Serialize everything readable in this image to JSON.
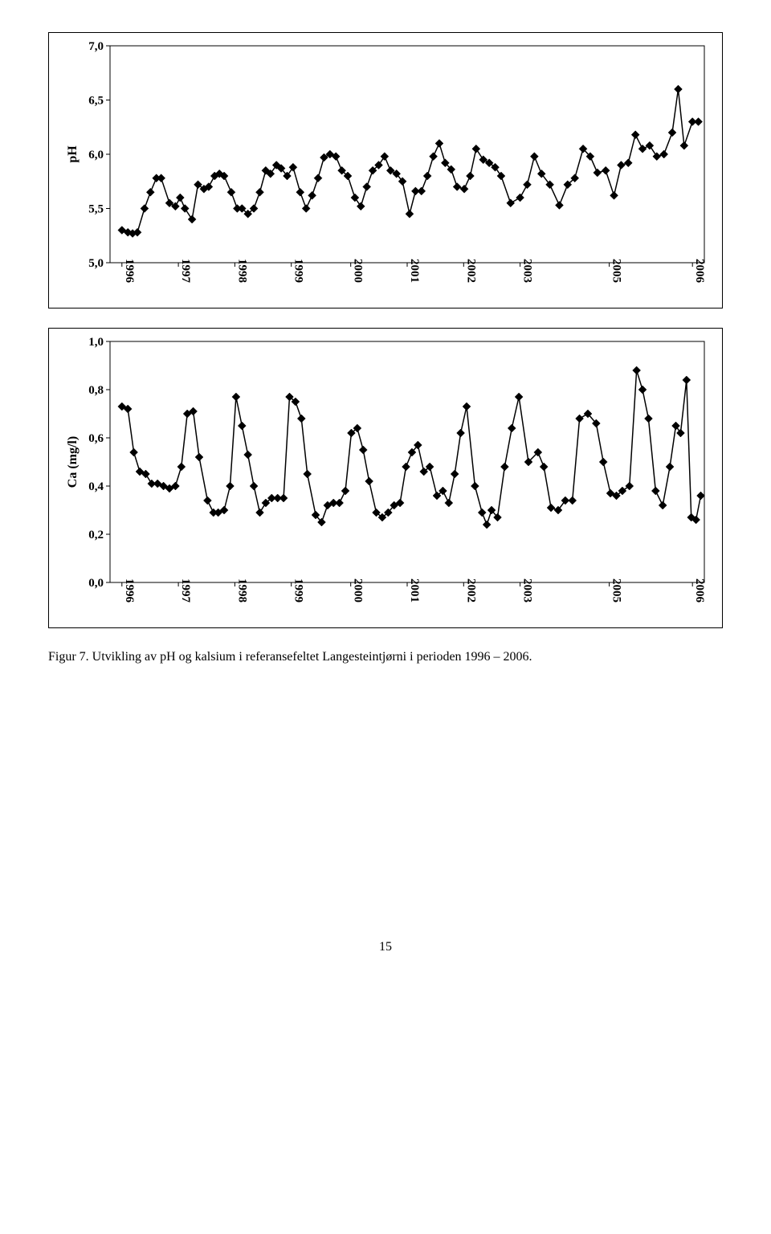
{
  "chart_ph": {
    "type": "line",
    "ylabel": "pH",
    "ylim": [
      5.0,
      7.0
    ],
    "yticks": [
      5.0,
      5.5,
      6.0,
      6.5,
      7.0
    ],
    "ytick_labels": [
      "5,0",
      "5,5",
      "6,0",
      "6,5",
      "7,0"
    ],
    "xlim": [
      0,
      100
    ],
    "xtick_positions": [
      2,
      11.5,
      21,
      30.5,
      40.5,
      50,
      59.5,
      69,
      84,
      98
    ],
    "xtick_labels": [
      "1996",
      "1997",
      "1998",
      "1999",
      "2000",
      "2001",
      "2002",
      "2003",
      "2005",
      "2006"
    ],
    "xtick_rotation": 90,
    "background_color": "#ffffff",
    "grid_color": "#000000",
    "line_color": "#000000",
    "line_width": 1.5,
    "marker": "diamond",
    "marker_size": 5,
    "marker_color": "#000000",
    "label_fontsize": 15,
    "data": [
      {
        "x": 2.0,
        "y": 5.3
      },
      {
        "x": 3.0,
        "y": 5.28
      },
      {
        "x": 3.8,
        "y": 5.27
      },
      {
        "x": 4.6,
        "y": 5.28
      },
      {
        "x": 5.8,
        "y": 5.5
      },
      {
        "x": 6.8,
        "y": 5.65
      },
      {
        "x": 7.8,
        "y": 5.78
      },
      {
        "x": 8.6,
        "y": 5.78
      },
      {
        "x": 10.0,
        "y": 5.55
      },
      {
        "x": 11.0,
        "y": 5.52
      },
      {
        "x": 11.8,
        "y": 5.6
      },
      {
        "x": 12.6,
        "y": 5.5
      },
      {
        "x": 13.8,
        "y": 5.4
      },
      {
        "x": 14.8,
        "y": 5.72
      },
      {
        "x": 15.8,
        "y": 5.68
      },
      {
        "x": 16.6,
        "y": 5.7
      },
      {
        "x": 17.6,
        "y": 5.8
      },
      {
        "x": 18.4,
        "y": 5.82
      },
      {
        "x": 19.2,
        "y": 5.8
      },
      {
        "x": 20.4,
        "y": 5.65
      },
      {
        "x": 21.4,
        "y": 5.5
      },
      {
        "x": 22.2,
        "y": 5.5
      },
      {
        "x": 23.2,
        "y": 5.45
      },
      {
        "x": 24.2,
        "y": 5.5
      },
      {
        "x": 25.2,
        "y": 5.65
      },
      {
        "x": 26.2,
        "y": 5.85
      },
      {
        "x": 27.0,
        "y": 5.82
      },
      {
        "x": 28.0,
        "y": 5.9
      },
      {
        "x": 28.8,
        "y": 5.87
      },
      {
        "x": 29.8,
        "y": 5.8
      },
      {
        "x": 30.8,
        "y": 5.88
      },
      {
        "x": 32.0,
        "y": 5.65
      },
      {
        "x": 33.0,
        "y": 5.5
      },
      {
        "x": 34.0,
        "y": 5.62
      },
      {
        "x": 35.0,
        "y": 5.78
      },
      {
        "x": 36.0,
        "y": 5.97
      },
      {
        "x": 37.0,
        "y": 6.0
      },
      {
        "x": 38.0,
        "y": 5.98
      },
      {
        "x": 39.0,
        "y": 5.85
      },
      {
        "x": 40.0,
        "y": 5.8
      },
      {
        "x": 41.2,
        "y": 5.6
      },
      {
        "x": 42.2,
        "y": 5.52
      },
      {
        "x": 43.2,
        "y": 5.7
      },
      {
        "x": 44.2,
        "y": 5.85
      },
      {
        "x": 45.2,
        "y": 5.9
      },
      {
        "x": 46.2,
        "y": 5.98
      },
      {
        "x": 47.2,
        "y": 5.85
      },
      {
        "x": 48.2,
        "y": 5.82
      },
      {
        "x": 49.2,
        "y": 5.75
      },
      {
        "x": 50.4,
        "y": 5.45
      },
      {
        "x": 51.4,
        "y": 5.66
      },
      {
        "x": 52.4,
        "y": 5.66
      },
      {
        "x": 53.4,
        "y": 5.8
      },
      {
        "x": 54.4,
        "y": 5.98
      },
      {
        "x": 55.4,
        "y": 6.1
      },
      {
        "x": 56.4,
        "y": 5.92
      },
      {
        "x": 57.4,
        "y": 5.86
      },
      {
        "x": 58.4,
        "y": 5.7
      },
      {
        "x": 59.6,
        "y": 5.68
      },
      {
        "x": 60.6,
        "y": 5.8
      },
      {
        "x": 61.6,
        "y": 6.05
      },
      {
        "x": 62.8,
        "y": 5.95
      },
      {
        "x": 63.8,
        "y": 5.92
      },
      {
        "x": 64.8,
        "y": 5.88
      },
      {
        "x": 65.8,
        "y": 5.8
      },
      {
        "x": 67.4,
        "y": 5.55
      },
      {
        "x": 69.0,
        "y": 5.6
      },
      {
        "x": 70.2,
        "y": 5.72
      },
      {
        "x": 71.4,
        "y": 5.98
      },
      {
        "x": 72.6,
        "y": 5.82
      },
      {
        "x": 74.0,
        "y": 5.72
      },
      {
        "x": 75.6,
        "y": 5.53
      },
      {
        "x": 77.0,
        "y": 5.72
      },
      {
        "x": 78.2,
        "y": 5.78
      },
      {
        "x": 79.6,
        "y": 6.05
      },
      {
        "x": 80.8,
        "y": 5.98
      },
      {
        "x": 82.0,
        "y": 5.83
      },
      {
        "x": 83.4,
        "y": 5.85
      },
      {
        "x": 84.8,
        "y": 5.62
      },
      {
        "x": 86.0,
        "y": 5.9
      },
      {
        "x": 87.2,
        "y": 5.92
      },
      {
        "x": 88.4,
        "y": 6.18
      },
      {
        "x": 89.6,
        "y": 6.05
      },
      {
        "x": 90.8,
        "y": 6.08
      },
      {
        "x": 92.0,
        "y": 5.98
      },
      {
        "x": 93.2,
        "y": 6.0
      },
      {
        "x": 94.6,
        "y": 6.2
      },
      {
        "x": 95.6,
        "y": 6.6
      },
      {
        "x": 96.6,
        "y": 6.08
      },
      {
        "x": 98.0,
        "y": 6.3
      },
      {
        "x": 99.0,
        "y": 6.3
      }
    ]
  },
  "chart_ca": {
    "type": "line",
    "ylabel": "Ca (mg/l)",
    "ylim": [
      0.0,
      1.0
    ],
    "yticks": [
      0.0,
      0.2,
      0.4,
      0.6,
      0.8,
      1.0
    ],
    "ytick_labels": [
      "0,0",
      "0,2",
      "0,4",
      "0,6",
      "0,8",
      "1,0"
    ],
    "xlim": [
      0,
      100
    ],
    "xtick_positions": [
      2,
      11.5,
      21,
      30.5,
      40.5,
      50,
      59.5,
      69,
      84,
      98
    ],
    "xtick_labels": [
      "1996",
      "1997",
      "1998",
      "1999",
      "2000",
      "2001",
      "2002",
      "2003",
      "2005",
      "2006"
    ],
    "xtick_rotation": 90,
    "background_color": "#ffffff",
    "grid_color": "#000000",
    "line_color": "#000000",
    "line_width": 1.5,
    "marker": "diamond",
    "marker_size": 5,
    "marker_color": "#000000",
    "label_fontsize": 15,
    "data": [
      {
        "x": 2.0,
        "y": 0.73
      },
      {
        "x": 3.0,
        "y": 0.72
      },
      {
        "x": 4.0,
        "y": 0.54
      },
      {
        "x": 5.0,
        "y": 0.46
      },
      {
        "x": 6.0,
        "y": 0.45
      },
      {
        "x": 7.0,
        "y": 0.41
      },
      {
        "x": 8.0,
        "y": 0.41
      },
      {
        "x": 9.0,
        "y": 0.4
      },
      {
        "x": 10.0,
        "y": 0.39
      },
      {
        "x": 11.0,
        "y": 0.4
      },
      {
        "x": 12.0,
        "y": 0.48
      },
      {
        "x": 13.0,
        "y": 0.7
      },
      {
        "x": 14.0,
        "y": 0.71
      },
      {
        "x": 15.0,
        "y": 0.52
      },
      {
        "x": 16.4,
        "y": 0.34
      },
      {
        "x": 17.4,
        "y": 0.29
      },
      {
        "x": 18.2,
        "y": 0.29
      },
      {
        "x": 19.2,
        "y": 0.3
      },
      {
        "x": 20.2,
        "y": 0.4
      },
      {
        "x": 21.2,
        "y": 0.77
      },
      {
        "x": 22.2,
        "y": 0.65
      },
      {
        "x": 23.2,
        "y": 0.53
      },
      {
        "x": 24.2,
        "y": 0.4
      },
      {
        "x": 25.2,
        "y": 0.29
      },
      {
        "x": 26.2,
        "y": 0.33
      },
      {
        "x": 27.2,
        "y": 0.35
      },
      {
        "x": 28.2,
        "y": 0.35
      },
      {
        "x": 29.2,
        "y": 0.35
      },
      {
        "x": 30.2,
        "y": 0.77
      },
      {
        "x": 31.2,
        "y": 0.75
      },
      {
        "x": 32.2,
        "y": 0.68
      },
      {
        "x": 33.2,
        "y": 0.45
      },
      {
        "x": 34.6,
        "y": 0.28
      },
      {
        "x": 35.6,
        "y": 0.25
      },
      {
        "x": 36.6,
        "y": 0.32
      },
      {
        "x": 37.6,
        "y": 0.33
      },
      {
        "x": 38.6,
        "y": 0.33
      },
      {
        "x": 39.6,
        "y": 0.38
      },
      {
        "x": 40.6,
        "y": 0.62
      },
      {
        "x": 41.6,
        "y": 0.64
      },
      {
        "x": 42.6,
        "y": 0.55
      },
      {
        "x": 43.6,
        "y": 0.42
      },
      {
        "x": 44.8,
        "y": 0.29
      },
      {
        "x": 45.8,
        "y": 0.27
      },
      {
        "x": 46.8,
        "y": 0.29
      },
      {
        "x": 47.8,
        "y": 0.32
      },
      {
        "x": 48.8,
        "y": 0.33
      },
      {
        "x": 49.8,
        "y": 0.48
      },
      {
        "x": 50.8,
        "y": 0.54
      },
      {
        "x": 51.8,
        "y": 0.57
      },
      {
        "x": 52.8,
        "y": 0.46
      },
      {
        "x": 53.8,
        "y": 0.48
      },
      {
        "x": 55.0,
        "y": 0.36
      },
      {
        "x": 56.0,
        "y": 0.38
      },
      {
        "x": 57.0,
        "y": 0.33
      },
      {
        "x": 58.0,
        "y": 0.45
      },
      {
        "x": 59.0,
        "y": 0.62
      },
      {
        "x": 60.0,
        "y": 0.73
      },
      {
        "x": 61.4,
        "y": 0.4
      },
      {
        "x": 62.6,
        "y": 0.29
      },
      {
        "x": 63.4,
        "y": 0.24
      },
      {
        "x": 64.2,
        "y": 0.3
      },
      {
        "x": 65.2,
        "y": 0.27
      },
      {
        "x": 66.4,
        "y": 0.48
      },
      {
        "x": 67.6,
        "y": 0.64
      },
      {
        "x": 68.8,
        "y": 0.77
      },
      {
        "x": 70.4,
        "y": 0.5
      },
      {
        "x": 72.0,
        "y": 0.54
      },
      {
        "x": 73.0,
        "y": 0.48
      },
      {
        "x": 74.2,
        "y": 0.31
      },
      {
        "x": 75.4,
        "y": 0.3
      },
      {
        "x": 76.6,
        "y": 0.34
      },
      {
        "x": 77.8,
        "y": 0.34
      },
      {
        "x": 79.0,
        "y": 0.68
      },
      {
        "x": 80.4,
        "y": 0.7
      },
      {
        "x": 81.8,
        "y": 0.66
      },
      {
        "x": 83.0,
        "y": 0.5
      },
      {
        "x": 84.2,
        "y": 0.37
      },
      {
        "x": 85.2,
        "y": 0.36
      },
      {
        "x": 86.2,
        "y": 0.38
      },
      {
        "x": 87.4,
        "y": 0.4
      },
      {
        "x": 88.6,
        "y": 0.88
      },
      {
        "x": 89.6,
        "y": 0.8
      },
      {
        "x": 90.6,
        "y": 0.68
      },
      {
        "x": 91.8,
        "y": 0.38
      },
      {
        "x": 93.0,
        "y": 0.32
      },
      {
        "x": 94.2,
        "y": 0.48
      },
      {
        "x": 95.2,
        "y": 0.65
      },
      {
        "x": 96.0,
        "y": 0.62
      },
      {
        "x": 97.0,
        "y": 0.84
      },
      {
        "x": 97.8,
        "y": 0.27
      },
      {
        "x": 98.6,
        "y": 0.26
      },
      {
        "x": 99.4,
        "y": 0.36
      }
    ]
  },
  "caption": "Figur 7. Utvikling av pH og kalsium i referansefeltet Langesteintjørni i perioden 1996 – 2006.",
  "page_number": "15"
}
